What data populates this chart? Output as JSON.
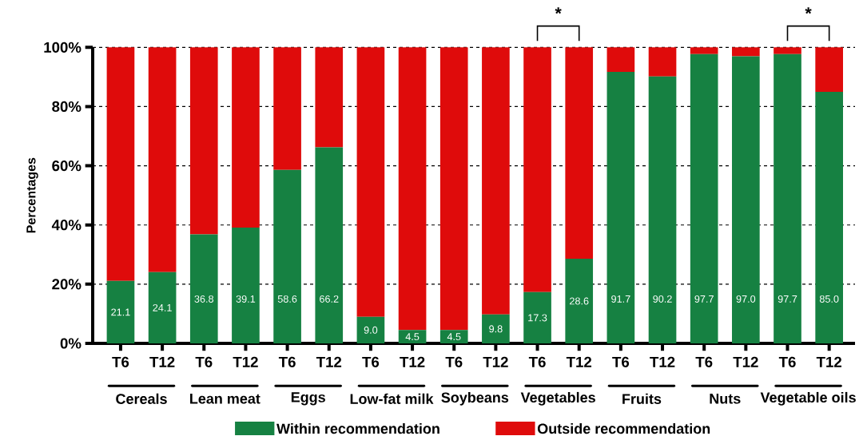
{
  "chart_data": {
    "type": "bar",
    "stacked": true,
    "ylabel": "Percentages",
    "categories": [
      "T6",
      "T12",
      "T6",
      "T12",
      "T6",
      "T12",
      "T6",
      "T12",
      "T6",
      "T12",
      "T6",
      "T12",
      "T6",
      "T12",
      "T6",
      "T12",
      "T6",
      "T12"
    ],
    "series": [
      {
        "name": "Within recommendation",
        "color": "#168142",
        "values": [
          21.1,
          24.1,
          36.8,
          39.1,
          58.6,
          66.2,
          9.0,
          4.5,
          4.5,
          9.8,
          17.3,
          28.6,
          91.7,
          90.2,
          97.7,
          97.0,
          97.7,
          85.0
        ],
        "value_labels": [
          "21.1",
          "24.1",
          "36.8",
          "39.1",
          "58.6",
          "66.2",
          "9.0",
          "4.5",
          "4.5",
          "9.8",
          "17.3",
          "28.6",
          "91.7",
          "90.2",
          "97.7",
          "97.0",
          "97.7",
          "85.0"
        ]
      },
      {
        "name": "Outside recommendation",
        "color": "#df0b0b",
        "values": [
          78.9,
          75.9,
          63.2,
          60.9,
          41.4,
          33.8,
          91.0,
          95.5,
          95.5,
          90.2,
          82.7,
          71.4,
          8.3,
          9.8,
          2.3,
          3.0,
          2.3,
          15.0
        ]
      }
    ],
    "ylim": [
      0,
      100
    ],
    "yticks": [
      {
        "value": 0,
        "label": "0%"
      },
      {
        "value": 20,
        "label": "20%"
      },
      {
        "value": 40,
        "label": "40%"
      },
      {
        "value": 60,
        "label": "60%"
      },
      {
        "value": 80,
        "label": "80%"
      },
      {
        "value": 100,
        "label": "100%"
      }
    ],
    "grid": "y",
    "legend": "bottom",
    "annotations": [
      "Cereals",
      "Lean meat",
      "Eggs",
      "Low-fat milk",
      "Soybeans",
      "Vegetables",
      "Fruits",
      "Nuts",
      "Vegetable oils",
      "*",
      "*"
    ]
  }
}
